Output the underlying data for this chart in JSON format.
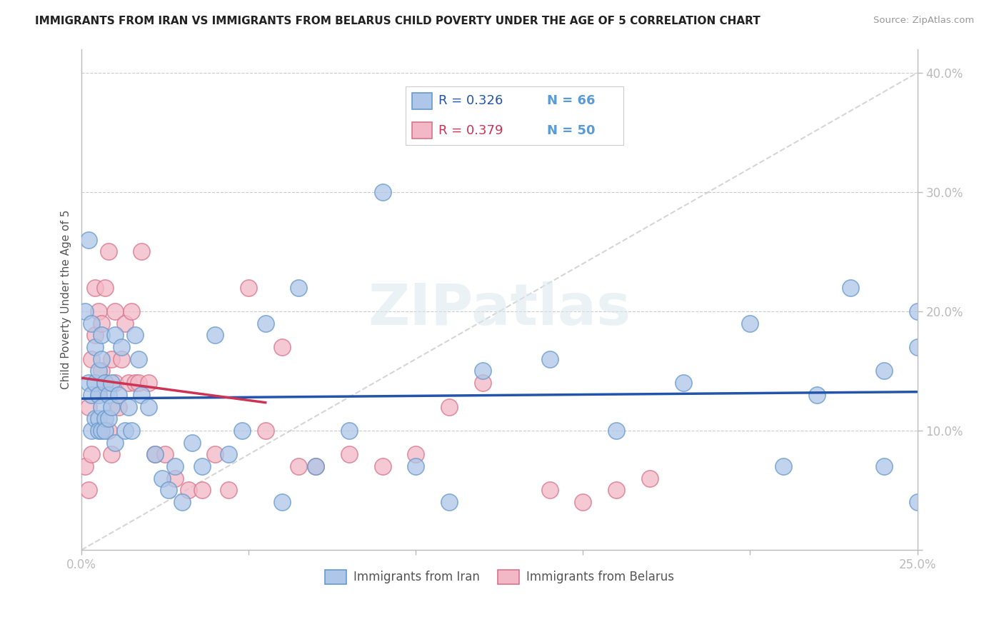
{
  "title": "IMMIGRANTS FROM IRAN VS IMMIGRANTS FROM BELARUS CHILD POVERTY UNDER THE AGE OF 5 CORRELATION CHART",
  "source": "Source: ZipAtlas.com",
  "ylabel": "Child Poverty Under the Age of 5",
  "xlim": [
    0,
    0.25
  ],
  "ylim": [
    0,
    0.42
  ],
  "xticklabels_sparse": [
    "0.0%",
    "",
    "",
    "",
    "",
    "25.0%"
  ],
  "xtick_positions": [
    0.0,
    0.05,
    0.1,
    0.15,
    0.2,
    0.25
  ],
  "ytick_vals": [
    0.0,
    0.1,
    0.2,
    0.3,
    0.4
  ],
  "yticklabels_right": [
    "",
    "10.0%",
    "20.0%",
    "30.0%",
    "40.0%"
  ],
  "iran_color": "#aec6e8",
  "iran_edge_color": "#6699cc",
  "belarus_color": "#f2b8c6",
  "belarus_edge_color": "#d9748a",
  "iran_trend_color": "#2255aa",
  "belarus_trend_color": "#cc3355",
  "ref_line_color": "#cccccc",
  "axis_color": "#5b9bd5",
  "grid_color": "#cccccc",
  "n_color": "#5b9bd5",
  "watermark": "ZIPatlas",
  "legend_iran_r": "R = 0.326",
  "legend_iran_n": "N = 66",
  "legend_belarus_r": "R = 0.379",
  "legend_belarus_n": "N = 50",
  "legend_label_iran": "Immigrants from Iran",
  "legend_label_belarus": "Immigrants from Belarus",
  "iran_x": [
    0.001,
    0.002,
    0.002,
    0.003,
    0.003,
    0.003,
    0.004,
    0.004,
    0.004,
    0.005,
    0.005,
    0.005,
    0.005,
    0.006,
    0.006,
    0.006,
    0.006,
    0.007,
    0.007,
    0.007,
    0.008,
    0.008,
    0.009,
    0.009,
    0.01,
    0.01,
    0.011,
    0.012,
    0.013,
    0.014,
    0.015,
    0.016,
    0.017,
    0.018,
    0.02,
    0.022,
    0.024,
    0.026,
    0.028,
    0.03,
    0.033,
    0.036,
    0.04,
    0.044,
    0.048,
    0.055,
    0.06,
    0.065,
    0.07,
    0.08,
    0.09,
    0.1,
    0.11,
    0.12,
    0.14,
    0.16,
    0.18,
    0.2,
    0.21,
    0.22,
    0.23,
    0.24,
    0.24,
    0.25,
    0.25,
    0.25
  ],
  "iran_y": [
    0.2,
    0.14,
    0.26,
    0.1,
    0.13,
    0.19,
    0.11,
    0.14,
    0.17,
    0.11,
    0.13,
    0.1,
    0.15,
    0.16,
    0.12,
    0.1,
    0.18,
    0.11,
    0.14,
    0.1,
    0.13,
    0.11,
    0.14,
    0.12,
    0.09,
    0.18,
    0.13,
    0.17,
    0.1,
    0.12,
    0.1,
    0.18,
    0.16,
    0.13,
    0.12,
    0.08,
    0.06,
    0.05,
    0.07,
    0.04,
    0.09,
    0.07,
    0.18,
    0.08,
    0.1,
    0.19,
    0.04,
    0.22,
    0.07,
    0.1,
    0.3,
    0.07,
    0.04,
    0.15,
    0.16,
    0.1,
    0.14,
    0.19,
    0.07,
    0.13,
    0.22,
    0.15,
    0.07,
    0.2,
    0.04,
    0.17
  ],
  "belarus_x": [
    0.001,
    0.002,
    0.002,
    0.003,
    0.003,
    0.004,
    0.004,
    0.005,
    0.005,
    0.006,
    0.006,
    0.007,
    0.007,
    0.008,
    0.008,
    0.009,
    0.009,
    0.01,
    0.01,
    0.011,
    0.012,
    0.013,
    0.014,
    0.015,
    0.016,
    0.017,
    0.018,
    0.02,
    0.022,
    0.025,
    0.028,
    0.032,
    0.036,
    0.04,
    0.044,
    0.05,
    0.055,
    0.06,
    0.065,
    0.07,
    0.08,
    0.09,
    0.1,
    0.11,
    0.12,
    0.13,
    0.14,
    0.15,
    0.16,
    0.17
  ],
  "belarus_y": [
    0.07,
    0.05,
    0.12,
    0.08,
    0.16,
    0.18,
    0.22,
    0.13,
    0.2,
    0.19,
    0.15,
    0.14,
    0.22,
    0.1,
    0.25,
    0.08,
    0.16,
    0.14,
    0.2,
    0.12,
    0.16,
    0.19,
    0.14,
    0.2,
    0.14,
    0.14,
    0.25,
    0.14,
    0.08,
    0.08,
    0.06,
    0.05,
    0.05,
    0.08,
    0.05,
    0.22,
    0.1,
    0.17,
    0.07,
    0.07,
    0.08,
    0.07,
    0.08,
    0.12,
    0.14,
    0.36,
    0.05,
    0.04,
    0.05,
    0.06
  ],
  "iran_trend": [
    0.08,
    0.2
  ],
  "belarus_trend_x": [
    0.0,
    0.06
  ],
  "belarus_trend_y": [
    0.08,
    0.27
  ]
}
